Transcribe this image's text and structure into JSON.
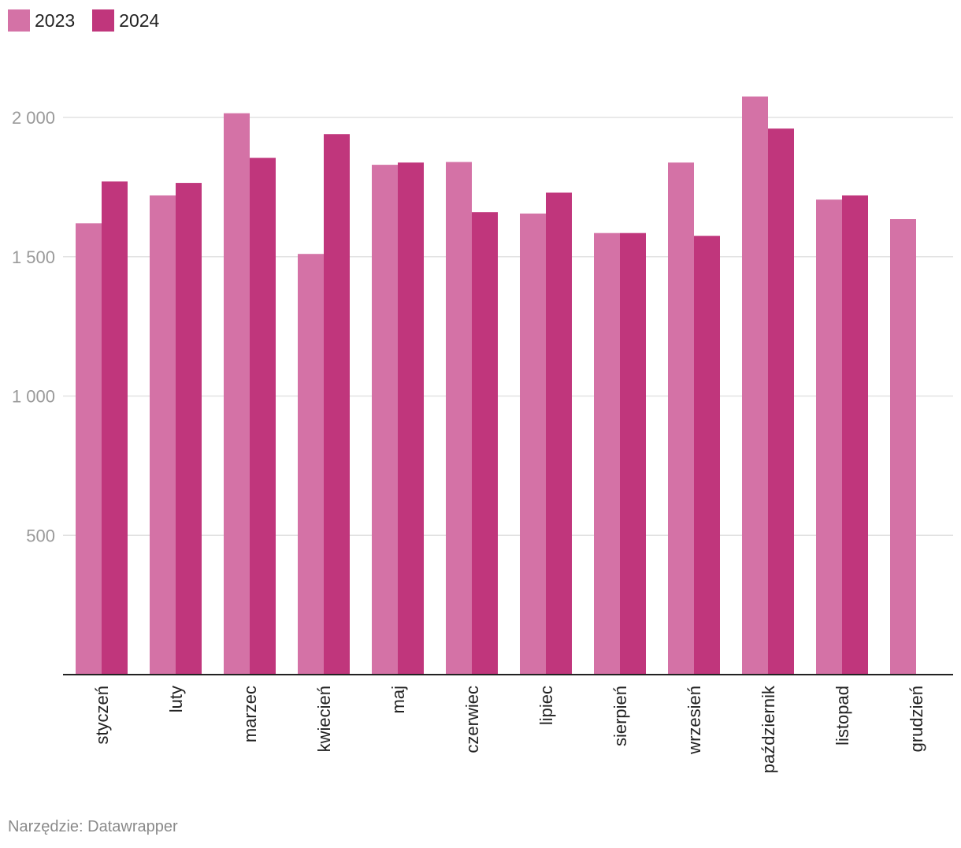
{
  "legend": {
    "items": [
      {
        "label": "2023",
        "color": "#d472a6"
      },
      {
        "label": "2024",
        "color": "#c0367c"
      }
    ]
  },
  "source": "Narzędzie: Datawrapper",
  "chart_data": {
    "type": "bar",
    "categories": [
      "styczeń",
      "luty",
      "marzec",
      "kwiecień",
      "maj",
      "czerwiec",
      "lipiec",
      "sierpień",
      "wrzesień",
      "październik",
      "listopad",
      "grudzień"
    ],
    "series": [
      {
        "name": "2023",
        "color": "#d472a6",
        "values": [
          1620,
          1720,
          2015,
          1510,
          1830,
          1840,
          1655,
          1585,
          1838,
          2075,
          1705,
          1635
        ]
      },
      {
        "name": "2024",
        "color": "#c0367c",
        "values": [
          1770,
          1765,
          1855,
          1940,
          1838,
          1660,
          1730,
          1585,
          1575,
          1960,
          1720,
          null
        ]
      }
    ],
    "yticks": [
      500,
      1000,
      1500,
      2000
    ],
    "ytick_labels": [
      "500",
      "1 000",
      "1 500",
      "2 000"
    ],
    "ylim": [
      0,
      2200
    ],
    "grid": true,
    "legend_position": "top-left",
    "title": "",
    "xlabel": "",
    "ylabel": ""
  }
}
